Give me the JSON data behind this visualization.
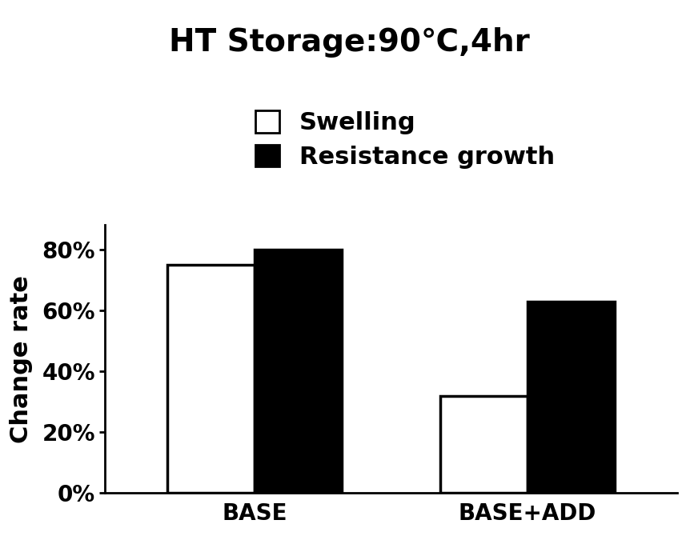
{
  "title": "HT Storage:90℃,4hr",
  "categories": [
    "BASE",
    "BASE+ADD"
  ],
  "swelling": [
    0.75,
    0.32
  ],
  "resistance_growth": [
    0.8,
    0.63
  ],
  "bar_colors": [
    "white",
    "black"
  ],
  "bar_edgecolor": "black",
  "ylabel": "Change rate",
  "ylim": [
    0,
    0.88
  ],
  "yticks": [
    0.0,
    0.2,
    0.4,
    0.6,
    0.8
  ],
  "ytick_labels": [
    "0%",
    "20%",
    "40%",
    "60%",
    "80%"
  ],
  "legend_labels": [
    "Swelling",
    "Resistance growth"
  ],
  "title_fontsize": 28,
  "ylabel_fontsize": 22,
  "tick_fontsize": 20,
  "legend_fontsize": 22,
  "bar_width": 0.32,
  "background_color": "#ffffff"
}
